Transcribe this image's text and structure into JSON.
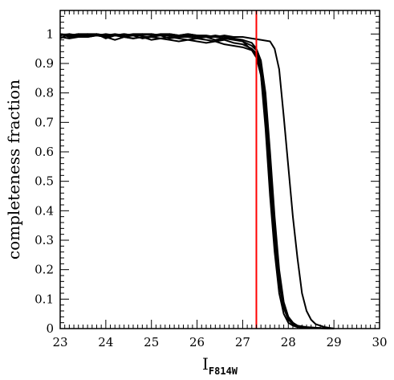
{
  "chart_data": {
    "type": "line",
    "title": "",
    "xlabel": "I",
    "xlabel_subscript": "F814W",
    "ylabel": "completeness fraction",
    "xlim": [
      23,
      30
    ],
    "ylim": [
      0,
      1.08
    ],
    "x_ticks": [
      23,
      24,
      25,
      26,
      27,
      28,
      29,
      30
    ],
    "y_ticks": [
      0,
      0.1,
      0.2,
      0.3,
      0.4,
      0.5,
      0.6,
      0.7,
      0.8,
      0.9,
      1
    ],
    "grid": false,
    "legend": "none",
    "reference_line": {
      "x": 27.3,
      "color": "#ff0000"
    },
    "series_color": "#000000",
    "series": [
      {
        "x": [
          23,
          23.2,
          23.4,
          23.6,
          23.8,
          24.0,
          24.2,
          24.4,
          24.6,
          24.8,
          25.0,
          25.2,
          25.4,
          25.6,
          25.8,
          26.0,
          26.2,
          26.4,
          26.6,
          26.8,
          27.0,
          27.2,
          27.3,
          27.4,
          27.5,
          27.6,
          27.7,
          27.8,
          27.9,
          28.0,
          28.1,
          28.2,
          28.3,
          28.5,
          28.8,
          29.0
        ],
        "values": [
          0.99,
          0.985,
          0.99,
          0.99,
          0.995,
          0.99,
          0.98,
          0.99,
          0.985,
          0.99,
          0.98,
          0.985,
          0.98,
          0.975,
          0.98,
          0.975,
          0.97,
          0.975,
          0.965,
          0.96,
          0.955,
          0.945,
          0.93,
          0.86,
          0.68,
          0.45,
          0.26,
          0.12,
          0.05,
          0.02,
          0.01,
          0.005,
          0.003,
          0.002,
          0.001,
          0.0
        ]
      },
      {
        "x": [
          23,
          23.2,
          23.4,
          23.6,
          23.8,
          24.0,
          24.2,
          24.4,
          24.6,
          24.8,
          25.0,
          25.2,
          25.4,
          25.6,
          25.8,
          26.0,
          26.2,
          26.4,
          26.6,
          26.8,
          27.0,
          27.2,
          27.3,
          27.4,
          27.5,
          27.6,
          27.7,
          27.8,
          27.9,
          28.0,
          28.1,
          28.2,
          28.3,
          28.5,
          28.8,
          29.0
        ],
        "values": [
          1.0,
          0.99,
          0.995,
          0.99,
          0.995,
          0.99,
          0.995,
          0.99,
          0.985,
          0.99,
          0.99,
          0.985,
          0.99,
          0.985,
          0.98,
          0.985,
          0.98,
          0.975,
          0.98,
          0.97,
          0.965,
          0.95,
          0.935,
          0.88,
          0.72,
          0.5,
          0.3,
          0.15,
          0.07,
          0.03,
          0.015,
          0.008,
          0.005,
          0.003,
          0.001,
          0.0
        ]
      },
      {
        "x": [
          23,
          23.2,
          23.4,
          23.6,
          23.8,
          24.0,
          24.2,
          24.4,
          24.6,
          24.8,
          25.0,
          25.2,
          25.4,
          25.6,
          25.8,
          26.0,
          26.2,
          26.4,
          26.6,
          26.8,
          27.0,
          27.2,
          27.3,
          27.4,
          27.5,
          27.6,
          27.7,
          27.8,
          27.9,
          28.0,
          28.1,
          28.2,
          28.3,
          28.5,
          28.8,
          29.0
        ],
        "values": [
          0.985,
          1.0,
          0.99,
          0.995,
          1.0,
          0.985,
          0.995,
          0.99,
          0.995,
          0.985,
          0.99,
          0.995,
          0.985,
          0.99,
          0.99,
          0.985,
          0.99,
          0.98,
          0.985,
          0.98,
          0.975,
          0.96,
          0.945,
          0.9,
          0.76,
          0.55,
          0.34,
          0.18,
          0.08,
          0.035,
          0.015,
          0.008,
          0.004,
          0.002,
          0.001,
          0.0
        ]
      },
      {
        "x": [
          23,
          23.2,
          23.4,
          23.6,
          23.8,
          24.0,
          24.2,
          24.4,
          24.6,
          24.8,
          25.0,
          25.2,
          25.4,
          25.6,
          25.8,
          26.0,
          26.2,
          26.4,
          26.6,
          26.8,
          27.0,
          27.2,
          27.3,
          27.4,
          27.5,
          27.6,
          27.7,
          27.8,
          27.9,
          28.0,
          28.1,
          28.2,
          28.3,
          28.5,
          28.8,
          29.0
        ],
        "values": [
          1.0,
          0.995,
          1.0,
          1.0,
          0.995,
          1.0,
          0.995,
          1.0,
          0.995,
          0.995,
          1.0,
          0.995,
          0.995,
          0.99,
          0.995,
          0.99,
          0.99,
          0.99,
          0.985,
          0.985,
          0.98,
          0.97,
          0.95,
          0.91,
          0.8,
          0.6,
          0.38,
          0.2,
          0.09,
          0.04,
          0.02,
          0.01,
          0.005,
          0.002,
          0.001,
          0.0
        ]
      },
      {
        "x": [
          23,
          23.2,
          23.4,
          23.6,
          23.8,
          24.0,
          24.2,
          24.4,
          24.6,
          24.8,
          25.0,
          25.2,
          25.4,
          25.6,
          25.8,
          26.0,
          26.2,
          26.4,
          26.6,
          26.8,
          27.0,
          27.2,
          27.4,
          27.6,
          27.7,
          27.8,
          27.9,
          28.0,
          28.1,
          28.2,
          28.3,
          28.4,
          28.5,
          28.6,
          28.8,
          29.0
        ],
        "values": [
          0.995,
          1.0,
          0.995,
          1.0,
          1.0,
          0.995,
          1.0,
          0.995,
          1.0,
          1.0,
          0.995,
          1.0,
          1.0,
          0.995,
          1.0,
          0.995,
          0.995,
          0.99,
          0.995,
          0.99,
          0.99,
          0.985,
          0.98,
          0.975,
          0.95,
          0.88,
          0.72,
          0.55,
          0.38,
          0.24,
          0.12,
          0.06,
          0.03,
          0.015,
          0.005,
          0.0
        ]
      },
      {
        "x": [
          23,
          23.2,
          23.4,
          23.6,
          23.8,
          24.0,
          24.2,
          24.4,
          24.6,
          24.8,
          25.0,
          25.2,
          25.4,
          25.6,
          25.8,
          26.0,
          26.2,
          26.4,
          26.6,
          26.8,
          27.0,
          27.1,
          27.2,
          27.3,
          27.4,
          27.5,
          27.6,
          27.7,
          27.8,
          27.9,
          28.0,
          28.1,
          28.2,
          28.4,
          28.7,
          29.0
        ],
        "values": [
          1.0,
          0.995,
          1.0,
          0.995,
          1.0,
          0.995,
          0.995,
          1.0,
          0.995,
          1.0,
          1.0,
          0.995,
          1.0,
          0.995,
          1.0,
          0.995,
          0.99,
          0.995,
          0.99,
          0.985,
          0.975,
          0.96,
          0.945,
          0.92,
          0.86,
          0.72,
          0.52,
          0.32,
          0.17,
          0.08,
          0.04,
          0.02,
          0.01,
          0.005,
          0.002,
          0.0
        ]
      }
    ]
  }
}
